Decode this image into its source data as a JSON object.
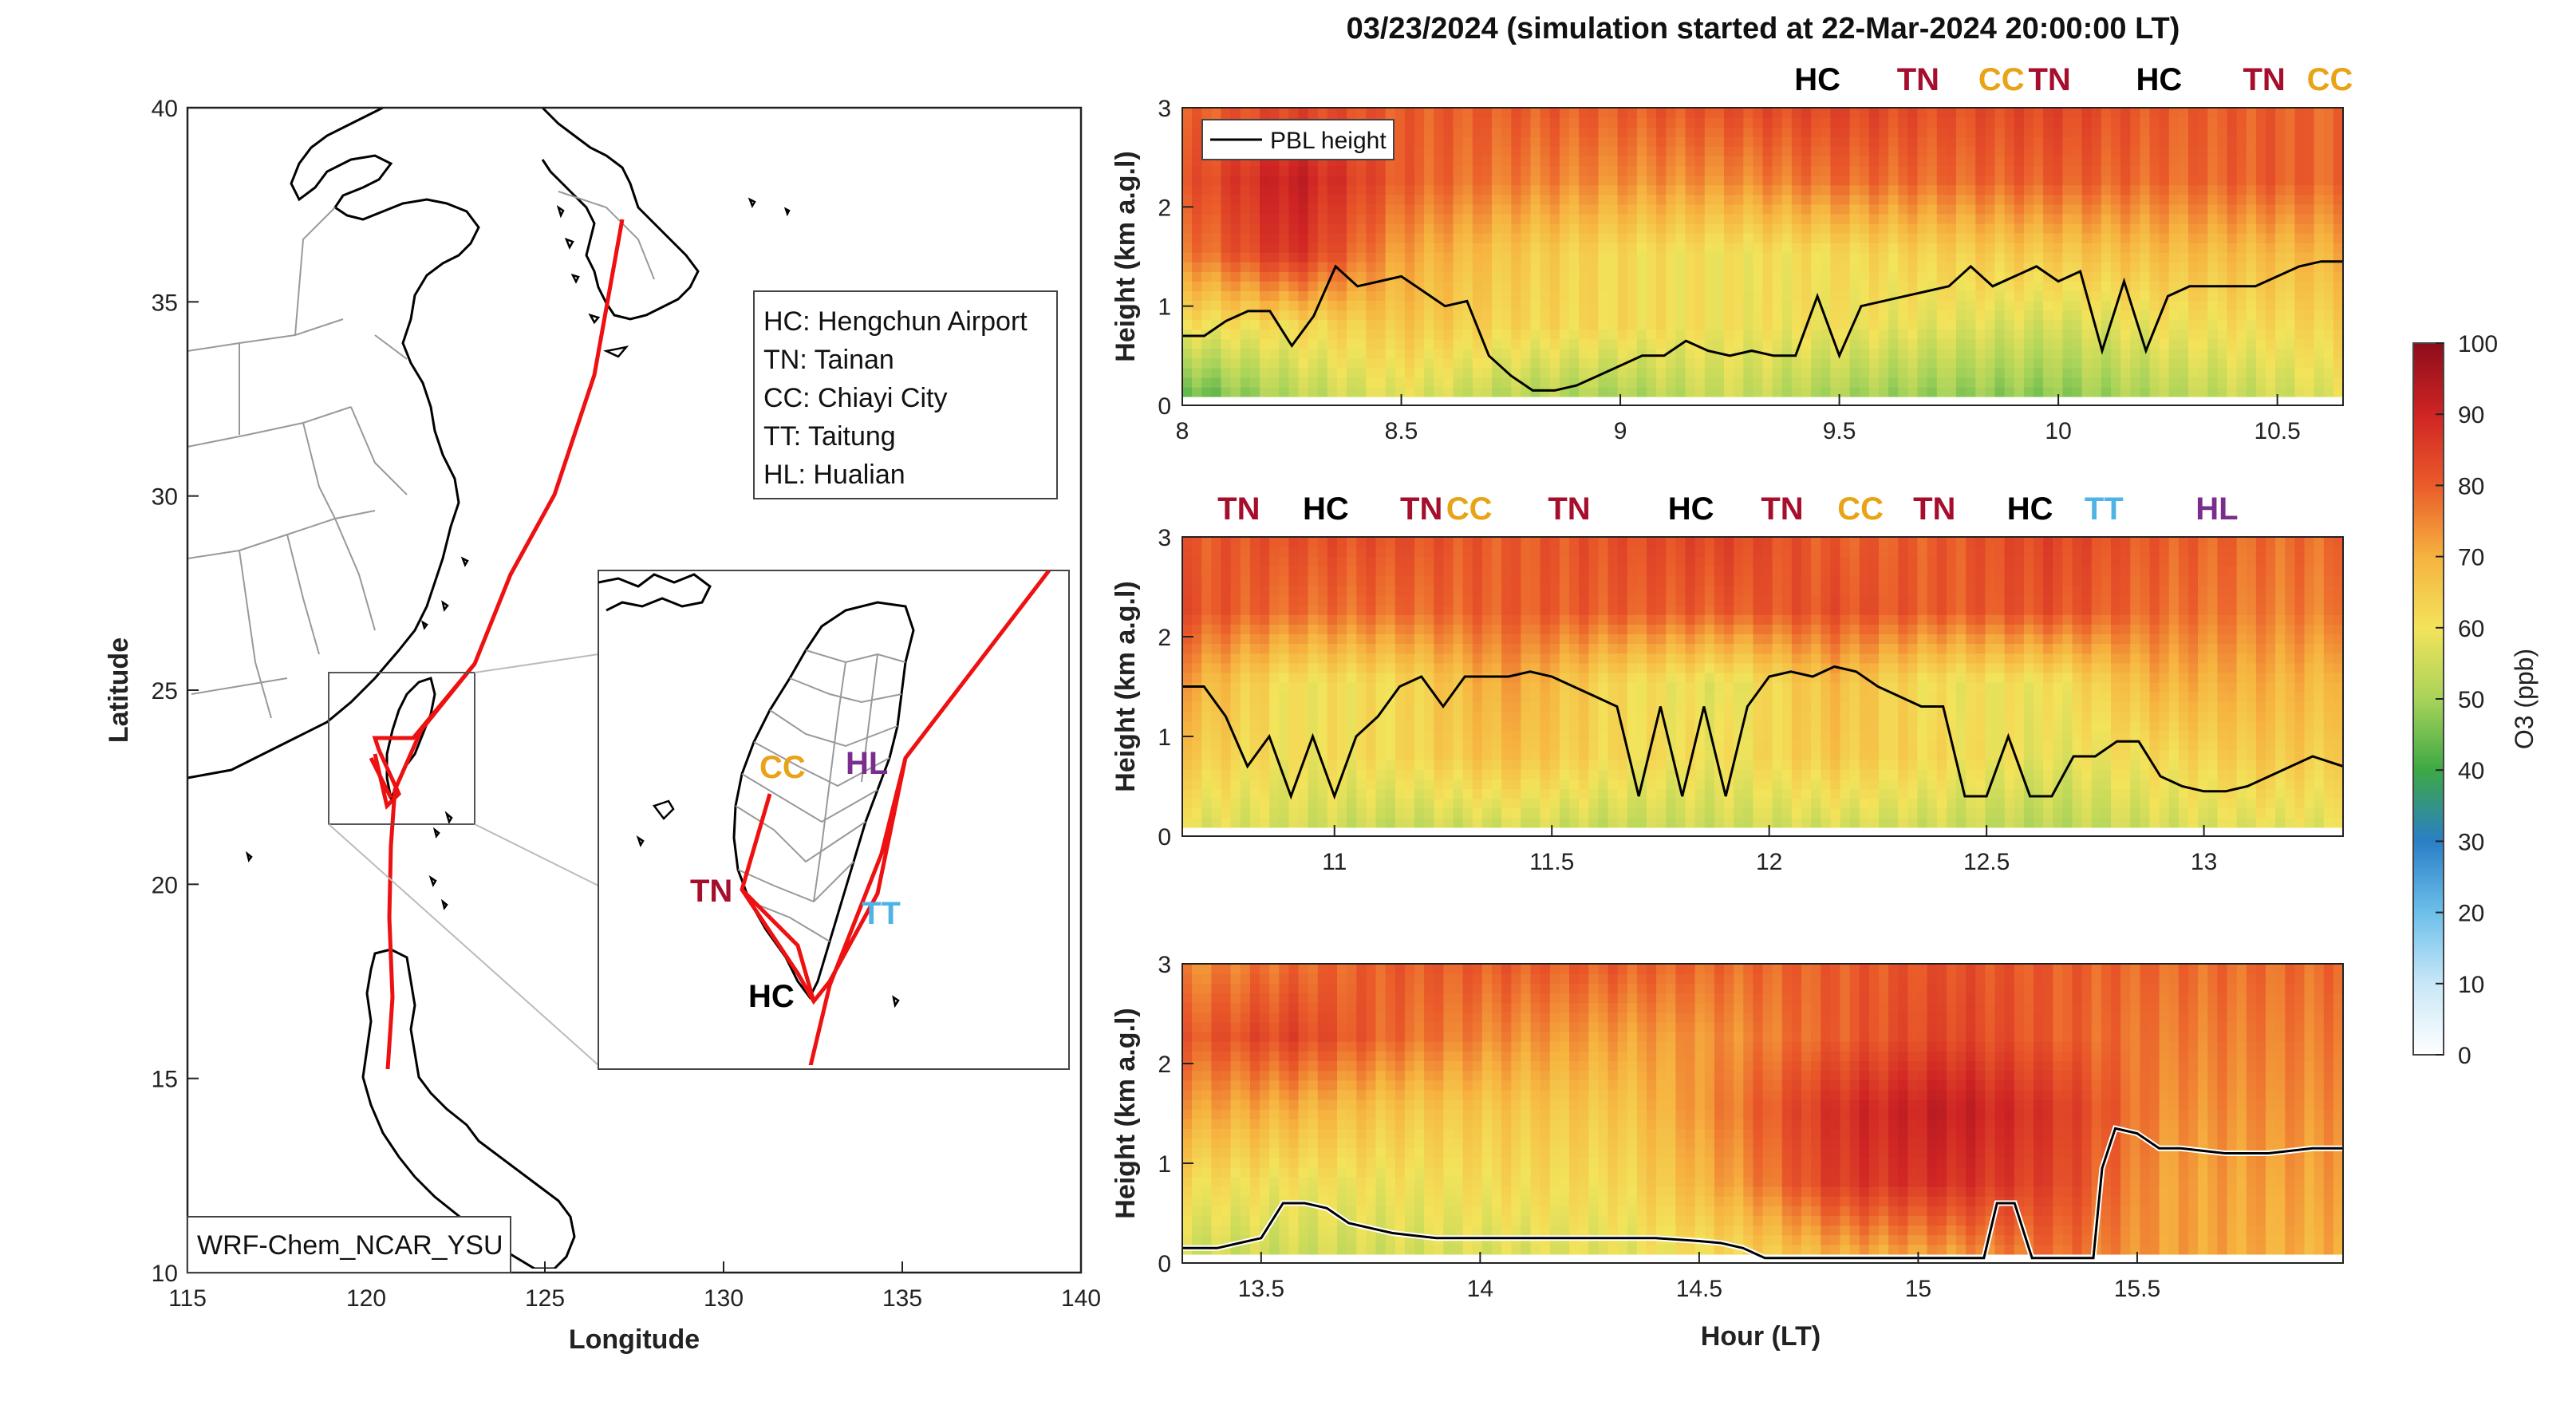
{
  "figure": {
    "suptitle": "03/23/2024 (simulation started at 22-Mar-2024 20:00:00 LT)",
    "colors": {
      "HC": "#000000",
      "TN": "#a50f2d",
      "CC": "#e8a317",
      "TT": "#4fb3e6",
      "HL": "#7b2d8e",
      "track": "#ee1111"
    }
  },
  "map": {
    "xlabel": "Longitude",
    "ylabel": "Latitude",
    "xlim": [
      115,
      140
    ],
    "ylim": [
      10,
      40
    ],
    "xticks": [
      "115",
      "120",
      "125",
      "130",
      "135",
      "140"
    ],
    "yticks": [
      "10",
      "15",
      "20",
      "25",
      "30",
      "35",
      "40"
    ],
    "model_label": "WRF-Chem_NCAR_YSU",
    "legend": [
      "HC: Hengchun Airport",
      "TN: Tainan",
      "CC: Chiayi City",
      "TT: Taitung",
      "HL: Hualian"
    ],
    "inset_labels": [
      {
        "code": "CC",
        "color": "#e8a317"
      },
      {
        "code": "HL",
        "color": "#7b2d8e"
      },
      {
        "code": "TN",
        "color": "#a50f2d"
      },
      {
        "code": "TT",
        "color": "#4fb3e6"
      },
      {
        "code": "HC",
        "color": "#000000"
      }
    ]
  },
  "chart_data": [
    {
      "type": "heatmap",
      "title": "",
      "xlabel": "",
      "ylabel": "Height (km a.g.l)",
      "xlim": [
        8.0,
        10.65
      ],
      "ylim": [
        0,
        3
      ],
      "xticks": [
        "8",
        "8.5",
        "9",
        "9.5",
        "10",
        "10.5"
      ],
      "yticks": [
        "0",
        "1",
        "2",
        "3"
      ],
      "legend": "PBL height",
      "site_labels": [
        {
          "code": "HC",
          "hour": 9.45
        },
        {
          "code": "TN",
          "hour": 9.68
        },
        {
          "code": "CC",
          "hour": 9.87
        },
        {
          "code": "TN",
          "hour": 9.98
        },
        {
          "code": "HC",
          "hour": 10.23
        },
        {
          "code": "TN",
          "hour": 10.47
        },
        {
          "code": "CC",
          "hour": 10.62
        }
      ],
      "pbl_height_km": {
        "x": [
          8.0,
          8.05,
          8.1,
          8.15,
          8.2,
          8.25,
          8.3,
          8.35,
          8.4,
          8.45,
          8.5,
          8.55,
          8.6,
          8.65,
          8.7,
          8.75,
          8.8,
          8.85,
          8.9,
          8.95,
          9.0,
          9.05,
          9.1,
          9.15,
          9.2,
          9.25,
          9.3,
          9.35,
          9.4,
          9.45,
          9.5,
          9.55,
          9.6,
          9.65,
          9.7,
          9.75,
          9.8,
          9.85,
          9.9,
          9.95,
          10.0,
          10.05,
          10.1,
          10.15,
          10.2,
          10.25,
          10.3,
          10.35,
          10.4,
          10.45,
          10.5,
          10.55,
          10.6,
          10.65
        ],
        "y": [
          0.7,
          0.7,
          0.85,
          0.95,
          0.95,
          0.6,
          0.9,
          1.4,
          1.2,
          1.25,
          1.3,
          1.15,
          1.0,
          1.05,
          0.5,
          0.3,
          0.15,
          0.15,
          0.2,
          0.3,
          0.4,
          0.5,
          0.5,
          0.65,
          0.55,
          0.5,
          0.55,
          0.5,
          0.5,
          1.1,
          0.5,
          1.0,
          1.05,
          1.1,
          1.15,
          1.2,
          1.4,
          1.2,
          1.3,
          1.4,
          1.25,
          1.35,
          0.55,
          1.25,
          0.55,
          1.1,
          1.2,
          1.2,
          1.2,
          1.2,
          1.3,
          1.4,
          1.45,
          1.45
        ]
      },
      "ozone_ppb": {
        "x": [
          8.0,
          8.25,
          8.5,
          8.75,
          9.0,
          9.25,
          9.5,
          9.75,
          10.0,
          10.25,
          10.5,
          10.65
        ],
        "z": [
          [
            42,
            52,
            58,
            52,
            50,
            55,
            50,
            48,
            47,
            52,
            55,
            58
          ],
          [
            60,
            62,
            66,
            63,
            62,
            60,
            60,
            58,
            56,
            60,
            62,
            64
          ],
          [
            75,
            88,
            72,
            66,
            62,
            60,
            62,
            64,
            66,
            68,
            68,
            70
          ],
          [
            80,
            92,
            80,
            76,
            74,
            74,
            78,
            78,
            80,
            78,
            80,
            78
          ],
          [
            78,
            84,
            80,
            80,
            80,
            82,
            84,
            82,
            84,
            80,
            80,
            78
          ]
        ]
      }
    },
    {
      "type": "heatmap",
      "title": "",
      "xlabel": "",
      "ylabel": "Height (km a.g.l)",
      "xlim": [
        10.65,
        13.32
      ],
      "ylim": [
        0,
        3
      ],
      "xticks": [
        "11",
        "11.5",
        "12",
        "12.5",
        "13"
      ],
      "yticks": [
        "0",
        "1",
        "2",
        "3"
      ],
      "site_labels": [
        {
          "code": "TN",
          "hour": 10.78
        },
        {
          "code": "HC",
          "hour": 10.98
        },
        {
          "code": "TN",
          "hour": 11.2
        },
        {
          "code": "CC",
          "hour": 11.31
        },
        {
          "code": "TN",
          "hour": 11.54
        },
        {
          "code": "HC",
          "hour": 11.82
        },
        {
          "code": "TN",
          "hour": 12.03
        },
        {
          "code": "CC",
          "hour": 12.21
        },
        {
          "code": "TN",
          "hour": 12.38
        },
        {
          "code": "HC",
          "hour": 12.6
        },
        {
          "code": "TT",
          "hour": 12.77
        },
        {
          "code": "HL",
          "hour": 13.03
        }
      ],
      "pbl_height_km": {
        "x": [
          10.65,
          10.7,
          10.75,
          10.8,
          10.85,
          10.9,
          10.95,
          11.0,
          11.05,
          11.1,
          11.15,
          11.2,
          11.25,
          11.3,
          11.35,
          11.4,
          11.45,
          11.5,
          11.55,
          11.6,
          11.65,
          11.7,
          11.75,
          11.8,
          11.85,
          11.9,
          11.95,
          12.0,
          12.05,
          12.1,
          12.15,
          12.2,
          12.25,
          12.3,
          12.35,
          12.4,
          12.45,
          12.5,
          12.55,
          12.6,
          12.65,
          12.7,
          12.75,
          12.8,
          12.85,
          12.9,
          12.95,
          13.0,
          13.05,
          13.1,
          13.15,
          13.2,
          13.25,
          13.32
        ],
        "y": [
          1.5,
          1.5,
          1.2,
          0.7,
          1.0,
          0.4,
          1.0,
          0.4,
          1.0,
          1.2,
          1.5,
          1.6,
          1.3,
          1.6,
          1.6,
          1.6,
          1.65,
          1.6,
          1.5,
          1.4,
          1.3,
          0.4,
          1.3,
          0.4,
          1.3,
          0.4,
          1.3,
          1.6,
          1.65,
          1.6,
          1.7,
          1.65,
          1.5,
          1.4,
          1.3,
          1.3,
          0.4,
          0.4,
          1.0,
          0.4,
          0.4,
          0.8,
          0.8,
          0.95,
          0.95,
          0.6,
          0.5,
          0.45,
          0.45,
          0.5,
          0.6,
          0.7,
          0.8,
          0.7
        ]
      },
      "ozone_ppb": {
        "x": [
          10.65,
          10.9,
          11.15,
          11.4,
          11.65,
          11.9,
          12.15,
          12.4,
          12.65,
          12.9,
          13.15,
          13.32
        ],
        "z": [
          [
            58,
            56,
            54,
            56,
            54,
            55,
            56,
            55,
            52,
            56,
            58,
            58
          ],
          [
            66,
            60,
            62,
            68,
            62,
            60,
            66,
            62,
            58,
            62,
            66,
            64
          ],
          [
            72,
            60,
            62,
            72,
            62,
            58,
            68,
            60,
            60,
            70,
            70,
            68
          ],
          [
            82,
            78,
            78,
            80,
            80,
            80,
            82,
            80,
            82,
            78,
            76,
            76
          ],
          [
            80,
            82,
            82,
            80,
            82,
            84,
            80,
            80,
            84,
            80,
            78,
            78
          ]
        ]
      }
    },
    {
      "type": "heatmap",
      "title": "",
      "xlabel": "Hour (LT)",
      "ylabel": "Height (km a.g.l)",
      "xlim": [
        13.32,
        15.97
      ],
      "ylim": [
        0,
        3
      ],
      "xticks": [
        "13.5",
        "14",
        "14.5",
        "15",
        "15.5"
      ],
      "yticks": [
        "0",
        "1",
        "2",
        "3"
      ],
      "site_labels": [],
      "pbl_height_km": {
        "x": [
          13.32,
          13.4,
          13.45,
          13.5,
          13.55,
          13.6,
          13.65,
          13.7,
          13.75,
          13.8,
          13.9,
          14.0,
          14.1,
          14.2,
          14.3,
          14.4,
          14.5,
          14.55,
          14.6,
          14.65,
          14.7,
          14.8,
          14.9,
          15.0,
          15.1,
          15.15,
          15.18,
          15.22,
          15.26,
          15.3,
          15.35,
          15.4,
          15.42,
          15.45,
          15.5,
          15.55,
          15.6,
          15.7,
          15.8,
          15.9,
          15.97
        ],
        "y": [
          0.15,
          0.15,
          0.2,
          0.25,
          0.6,
          0.6,
          0.55,
          0.4,
          0.35,
          0.3,
          0.25,
          0.25,
          0.25,
          0.25,
          0.25,
          0.25,
          0.22,
          0.2,
          0.15,
          0.05,
          0.05,
          0.05,
          0.05,
          0.05,
          0.05,
          0.05,
          0.6,
          0.6,
          0.05,
          0.05,
          0.05,
          0.05,
          0.95,
          1.35,
          1.3,
          1.15,
          1.15,
          1.1,
          1.1,
          1.15,
          1.15
        ]
      },
      "ozone_ppb": {
        "x": [
          13.32,
          13.57,
          13.82,
          14.07,
          14.32,
          14.57,
          14.82,
          15.07,
          15.32,
          15.57,
          15.82,
          15.97
        ],
        "z": [
          [
            55,
            55,
            56,
            57,
            58,
            62,
            70,
            72,
            78,
            72,
            70,
            70
          ],
          [
            62,
            60,
            60,
            62,
            62,
            72,
            86,
            88,
            84,
            72,
            72,
            72
          ],
          [
            72,
            70,
            66,
            66,
            66,
            76,
            88,
            92,
            86,
            74,
            74,
            74
          ],
          [
            80,
            84,
            78,
            74,
            72,
            74,
            80,
            84,
            80,
            76,
            76,
            76
          ],
          [
            74,
            78,
            80,
            80,
            80,
            78,
            80,
            82,
            80,
            78,
            78,
            78
          ]
        ]
      }
    }
  ],
  "colorbar": {
    "label": "O3 (ppb)",
    "min": 0,
    "max": 100,
    "ticks": [
      "0",
      "10",
      "20",
      "30",
      "40",
      "50",
      "60",
      "70",
      "80",
      "90",
      "100"
    ]
  }
}
